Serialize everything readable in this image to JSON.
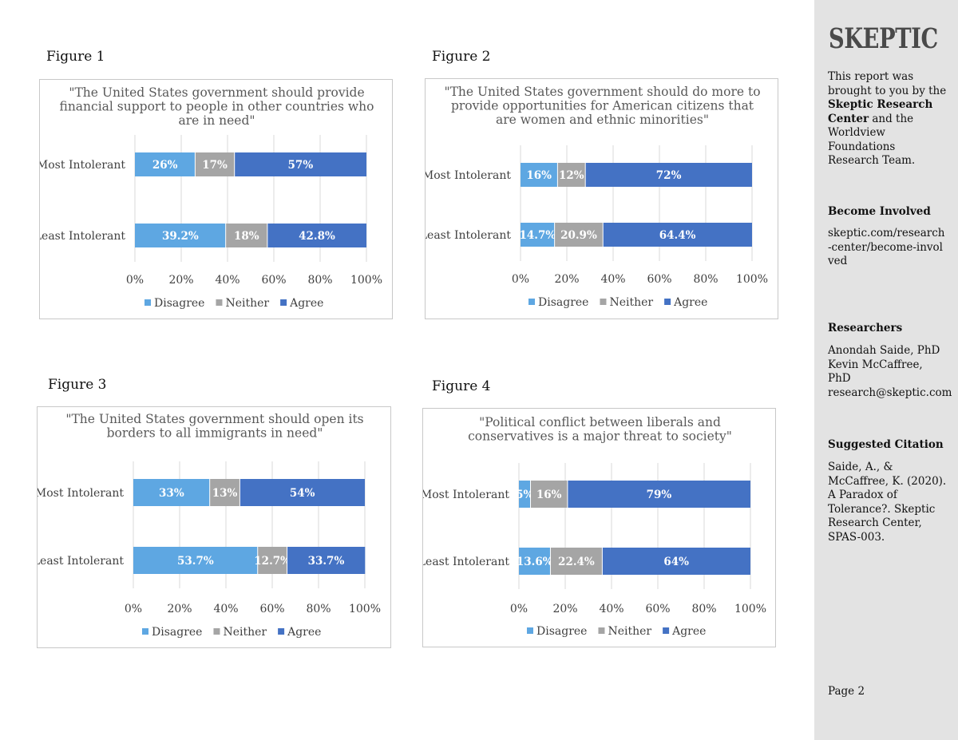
{
  "sidebar": {
    "logo": "SKEPTIC",
    "intro_pre": "This report was brought to you by the ",
    "intro_bold": "Skeptic Research Center",
    "intro_post": " and the Worldview Foundations Research Team.",
    "involved_heading": "Become Involved",
    "involved_link": "skeptic.com/research-center/become-involved",
    "researchers_heading": "Researchers",
    "researchers": [
      "Anondah Saide, PhD",
      "Kevin McCaffree, PhD",
      "research@skeptic.com"
    ],
    "citation_heading": "Suggested Citation",
    "citation_text": "Saide, A., & McCaffree, K. (2020). A Paradox of Tolerance?. Skeptic Research Center, SPAS-003.",
    "page": "Page 2"
  },
  "colors": {
    "disagree": "#5ea7e2",
    "neither": "#a5a5a5",
    "agree": "#4472c4"
  },
  "chart_data": [
    {
      "figure_label": "Figure 1",
      "type": "bar",
      "orientation": "horizontal-stacked-100",
      "title_lines": [
        "\"The United States government should provide",
        "financial support to people in other countries who",
        "are in need\""
      ],
      "categories": [
        "Most Intolerant",
        "Least Intolerant"
      ],
      "series": [
        {
          "name": "Disagree",
          "values": [
            26,
            39.2
          ],
          "labels": [
            "26%",
            "39.2%"
          ]
        },
        {
          "name": "Neither",
          "values": [
            17,
            18
          ],
          "labels": [
            "17%",
            "18%"
          ]
        },
        {
          "name": "Agree",
          "values": [
            57,
            42.8
          ],
          "labels": [
            "57%",
            "42.8%"
          ]
        }
      ],
      "xticks": [
        "0%",
        "20%",
        "40%",
        "60%",
        "80%",
        "100%"
      ],
      "xlim": [
        0,
        100
      ],
      "grid": true,
      "legend": "bottom"
    },
    {
      "figure_label": "Figure 2",
      "type": "bar",
      "orientation": "horizontal-stacked-100",
      "title_lines": [
        "\"The United States government should do more to",
        "provide opportunities for American citizens that",
        "are women and ethnic minorities\""
      ],
      "categories": [
        "Most Intolerant",
        "Least Intolerant"
      ],
      "series": [
        {
          "name": "Disagree",
          "values": [
            16,
            14.7
          ],
          "labels": [
            "16%",
            "14.7%"
          ]
        },
        {
          "name": "Neither",
          "values": [
            12,
            20.9
          ],
          "labels": [
            "12%",
            "20.9%"
          ]
        },
        {
          "name": "Agree",
          "values": [
            72,
            64.4
          ],
          "labels": [
            "72%",
            "64.4%"
          ]
        }
      ],
      "xticks": [
        "0%",
        "20%",
        "40%",
        "60%",
        "80%",
        "100%"
      ],
      "xlim": [
        0,
        100
      ],
      "grid": true,
      "legend": "bottom"
    },
    {
      "figure_label": "Figure 3",
      "type": "bar",
      "orientation": "horizontal-stacked-100",
      "title_lines": [
        "\"The United States government should open its",
        "borders to all immigrants in need\""
      ],
      "categories": [
        "Most Intolerant",
        "Least Intolerant"
      ],
      "series": [
        {
          "name": "Disagree",
          "values": [
            33,
            53.7
          ],
          "labels": [
            "33%",
            "53.7%"
          ]
        },
        {
          "name": "Neither",
          "values": [
            13,
            12.7
          ],
          "labels": [
            "13%",
            "12.7%"
          ]
        },
        {
          "name": "Agree",
          "values": [
            54,
            33.7
          ],
          "labels": [
            "54%",
            "33.7%"
          ]
        }
      ],
      "xticks": [
        "0%",
        "20%",
        "40%",
        "60%",
        "80%",
        "100%"
      ],
      "xlim": [
        0,
        100
      ],
      "grid": true,
      "legend": "bottom"
    },
    {
      "figure_label": "Figure 4",
      "type": "bar",
      "orientation": "horizontal-stacked-100",
      "title_lines": [
        "\"Political conflict between liberals and",
        "conservatives is a major threat to society\""
      ],
      "categories": [
        "Most Intolerant",
        "Least Intolerant"
      ],
      "series": [
        {
          "name": "Disagree",
          "values": [
            5,
            13.6
          ],
          "labels": [
            "5%",
            "13.6%"
          ]
        },
        {
          "name": "Neither",
          "values": [
            16,
            22.4
          ],
          "labels": [
            "16%",
            "22.4%"
          ]
        },
        {
          "name": "Agree",
          "values": [
            79,
            64
          ],
          "labels": [
            "79%",
            "64%"
          ]
        }
      ],
      "xticks": [
        "0%",
        "20%",
        "40%",
        "60%",
        "80%",
        "100%"
      ],
      "xlim": [
        0,
        100
      ],
      "grid": true,
      "legend": "bottom"
    }
  ]
}
